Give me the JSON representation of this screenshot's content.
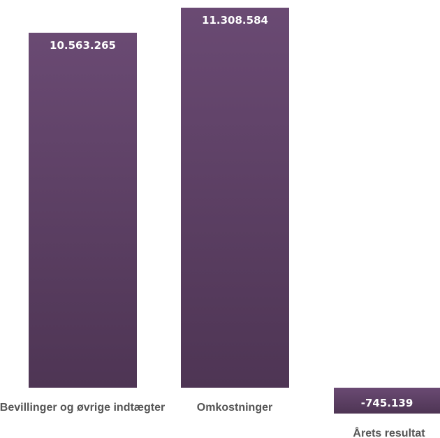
{
  "chart_data": {
    "type": "bar",
    "categories": [
      "Bevillinger og øvrige indtægter",
      "Omkostninger",
      "Årets resultat"
    ],
    "values": [
      10563265,
      11308584,
      -745139
    ],
    "data_labels": [
      "10.563.265",
      "11.308.584",
      "-745.139"
    ],
    "title": "",
    "xlabel": "",
    "ylabel": "",
    "ylim": [
      -745139,
      11308584
    ],
    "grid": false,
    "legend": "none",
    "colors": {
      "bar_top": "#6a4a73",
      "bar_bottom": "#4e3554",
      "data_label": "#ffffff",
      "category_label": "#555555"
    }
  }
}
